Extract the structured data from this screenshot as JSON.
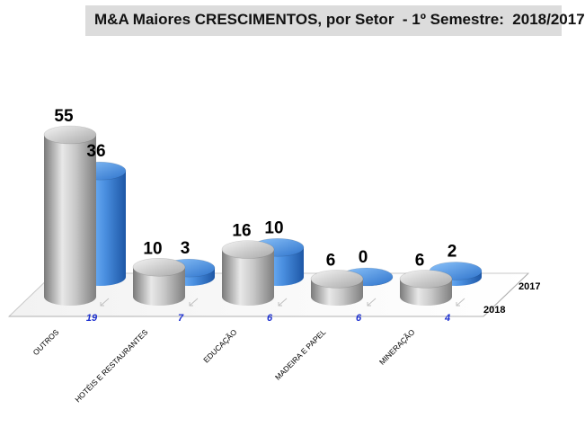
{
  "chart_data": {
    "type": "bar",
    "title": "M&A Maiores CRESCIMENTOS, por Setor  - 1º Semestre:  2018/2017",
    "categories": [
      "OUTROS",
      "HOTÉIS E RESTAURANTES",
      "EDUCAÇÃO",
      "MADEIRA E PAPEL",
      "MINERAÇÃO"
    ],
    "series": [
      {
        "name": "2018",
        "values": [
          55,
          10,
          16,
          6,
          6
        ],
        "color": "#b4b4b4"
      },
      {
        "name": "2017",
        "values": [
          36,
          3,
          10,
          0,
          2
        ],
        "color": "#4a8fe0"
      }
    ],
    "differences": [
      19,
      7,
      6,
      6,
      4
    ],
    "ylim": [
      0,
      55
    ],
    "grid": false,
    "legend": "depth-axis labels on right"
  }
}
